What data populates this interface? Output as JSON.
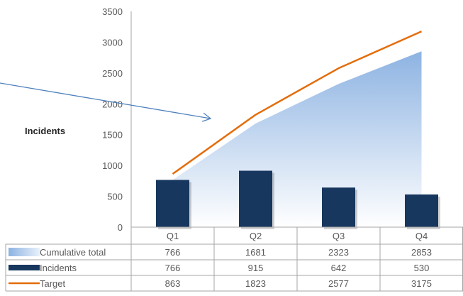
{
  "chart_data": {
    "type": "bar",
    "title": "",
    "xlabel": "",
    "ylabel": "Incidents",
    "ylim": [
      0,
      3500
    ],
    "yticks": [
      0,
      500,
      1000,
      1500,
      2000,
      2500,
      3000,
      3500
    ],
    "categories": [
      "Q1",
      "Q2",
      "Q3",
      "Q4"
    ],
    "series": [
      {
        "name": "Cumulative total",
        "kind": "area",
        "color": "#8DB3E2",
        "values": [
          766,
          1681,
          2323,
          2853
        ]
      },
      {
        "name": "Incidents",
        "kind": "bar",
        "color": "#17375E",
        "values": [
          766,
          915,
          642,
          530
        ]
      },
      {
        "name": "Target",
        "kind": "line",
        "color": "#E46C0A",
        "values": [
          863,
          1823,
          2577,
          3175
        ]
      }
    ],
    "grid": false,
    "legend": "data-table"
  }
}
